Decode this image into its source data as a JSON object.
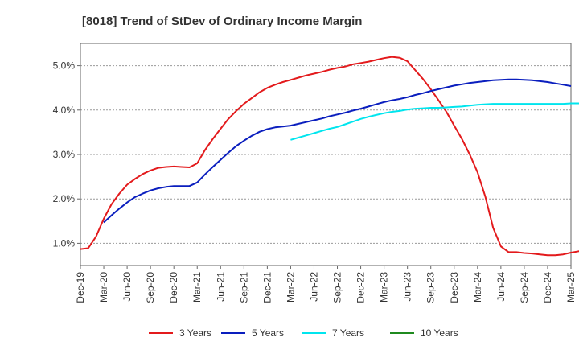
{
  "chart_data": {
    "type": "line",
    "title": "[8018]  Trend of StDev of Ordinary Income Margin",
    "x_ticks": [
      "Dec-19",
      "Mar-20",
      "Jun-20",
      "Sep-20",
      "Dec-20",
      "Mar-21",
      "Jun-21",
      "Sep-21",
      "Dec-21",
      "Mar-22",
      "Jun-22",
      "Sep-22",
      "Dec-22",
      "Mar-23",
      "Jun-23",
      "Sep-23",
      "Dec-23",
      "Mar-24",
      "Jun-24",
      "Sep-24",
      "Dec-24",
      "Mar-25"
    ],
    "y_ticks": [
      "1.0%",
      "2.0%",
      "3.0%",
      "4.0%",
      "5.0%"
    ],
    "ylim": [
      0.5,
      5.5
    ],
    "grid": true,
    "legend_position": "bottom",
    "x_start": "Dec-19",
    "x_step": "month",
    "series": [
      {
        "name": "3 Years",
        "color": "#e31a1c",
        "values": [
          0.87,
          0.89,
          1.15,
          1.55,
          1.88,
          2.12,
          2.32,
          2.45,
          2.56,
          2.64,
          2.7,
          2.72,
          2.73,
          2.72,
          2.71,
          2.8,
          3.1,
          3.35,
          3.58,
          3.8,
          3.98,
          4.14,
          4.27,
          4.4,
          4.5,
          4.57,
          4.63,
          4.68,
          4.73,
          4.78,
          4.82,
          4.86,
          4.91,
          4.95,
          4.98,
          5.03,
          5.06,
          5.09,
          5.13,
          5.17,
          5.2,
          5.18,
          5.1,
          4.9,
          4.7,
          4.47,
          4.22,
          3.96,
          3.65,
          3.35,
          3.0,
          2.6,
          2.05,
          1.35,
          0.93,
          0.8,
          0.8,
          0.78,
          0.77,
          0.75,
          0.73,
          0.73,
          0.75,
          0.79,
          0.82,
          0.84
        ]
      },
      {
        "name": "5 Years",
        "color": "#0a1ebe",
        "start_index": 3,
        "values": [
          1.47,
          1.63,
          1.78,
          1.92,
          2.04,
          2.12,
          2.19,
          2.24,
          2.27,
          2.29,
          2.29,
          2.29,
          2.37,
          2.55,
          2.72,
          2.88,
          3.04,
          3.19,
          3.31,
          3.42,
          3.51,
          3.57,
          3.61,
          3.63,
          3.65,
          3.69,
          3.73,
          3.77,
          3.81,
          3.86,
          3.9,
          3.94,
          3.99,
          4.03,
          4.08,
          4.13,
          4.18,
          4.22,
          4.25,
          4.29,
          4.34,
          4.38,
          4.43,
          4.47,
          4.51,
          4.55,
          4.58,
          4.61,
          4.63,
          4.65,
          4.67,
          4.68,
          4.69,
          4.69,
          4.68,
          4.67,
          4.65,
          4.63,
          4.6,
          4.57,
          4.54
        ]
      },
      {
        "name": "7 Years",
        "color": "#00e5ee",
        "start_index": 27,
        "values": [
          3.33,
          3.38,
          3.43,
          3.48,
          3.53,
          3.58,
          3.62,
          3.68,
          3.74,
          3.8,
          3.85,
          3.89,
          3.93,
          3.96,
          3.98,
          4.01,
          4.03,
          4.04,
          4.05,
          4.05,
          4.06,
          4.07,
          4.08,
          4.1,
          4.12,
          4.13,
          4.14,
          4.14,
          4.14,
          4.14,
          4.14,
          4.14,
          4.14,
          4.14,
          4.14,
          4.14,
          4.15,
          4.15,
          4.15
        ]
      },
      {
        "name": "10 Years",
        "color": "#1f8a1f",
        "values": []
      }
    ]
  }
}
